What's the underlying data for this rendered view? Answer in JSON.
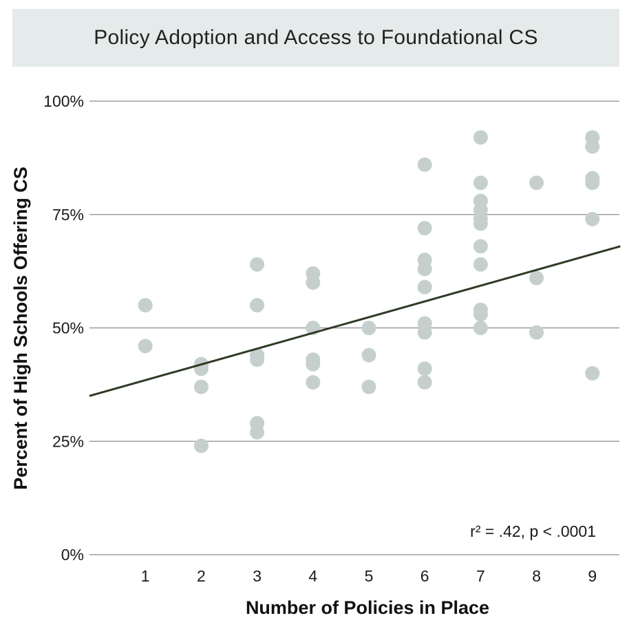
{
  "chart_data": {
    "type": "scatter",
    "title": "Policy Adoption and Access to Foundational CS",
    "xlabel": "Number of Policies in Place",
    "ylabel": "Percent of High Schools Offering CS",
    "x_ticks": [
      "1",
      "2",
      "3",
      "4",
      "5",
      "6",
      "7",
      "8",
      "9"
    ],
    "y_ticks": [
      "0%",
      "25%",
      "50%",
      "75%",
      "100%"
    ],
    "xlim": [
      0,
      9.5
    ],
    "ylim": [
      0,
      100
    ],
    "grid": "horizontal",
    "annotation": "r² = .42,  p < .0001",
    "points": [
      {
        "x": 1,
        "y": 55
      },
      {
        "x": 1,
        "y": 46
      },
      {
        "x": 2,
        "y": 42
      },
      {
        "x": 2,
        "y": 41
      },
      {
        "x": 2,
        "y": 37
      },
      {
        "x": 2,
        "y": 24
      },
      {
        "x": 3,
        "y": 64
      },
      {
        "x": 3,
        "y": 55
      },
      {
        "x": 3,
        "y": 44
      },
      {
        "x": 3,
        "y": 43
      },
      {
        "x": 3,
        "y": 29
      },
      {
        "x": 3,
        "y": 27
      },
      {
        "x": 4,
        "y": 62
      },
      {
        "x": 4,
        "y": 60
      },
      {
        "x": 4,
        "y": 50
      },
      {
        "x": 4,
        "y": 43
      },
      {
        "x": 4,
        "y": 42
      },
      {
        "x": 4,
        "y": 38
      },
      {
        "x": 5,
        "y": 50
      },
      {
        "x": 5,
        "y": 44
      },
      {
        "x": 5,
        "y": 37
      },
      {
        "x": 6,
        "y": 86
      },
      {
        "x": 6,
        "y": 72
      },
      {
        "x": 6,
        "y": 65
      },
      {
        "x": 6,
        "y": 63
      },
      {
        "x": 6,
        "y": 59
      },
      {
        "x": 6,
        "y": 51
      },
      {
        "x": 6,
        "y": 49
      },
      {
        "x": 6,
        "y": 41
      },
      {
        "x": 6,
        "y": 38
      },
      {
        "x": 7,
        "y": 92
      },
      {
        "x": 7,
        "y": 82
      },
      {
        "x": 7,
        "y": 78
      },
      {
        "x": 7,
        "y": 76
      },
      {
        "x": 7,
        "y": 74
      },
      {
        "x": 7,
        "y": 73
      },
      {
        "x": 7,
        "y": 68
      },
      {
        "x": 7,
        "y": 64
      },
      {
        "x": 7,
        "y": 54
      },
      {
        "x": 7,
        "y": 53
      },
      {
        "x": 7,
        "y": 50
      },
      {
        "x": 8,
        "y": 82
      },
      {
        "x": 8,
        "y": 61
      },
      {
        "x": 8,
        "y": 49
      },
      {
        "x": 9,
        "y": 92
      },
      {
        "x": 9,
        "y": 90
      },
      {
        "x": 9,
        "y": 83
      },
      {
        "x": 9,
        "y": 82
      },
      {
        "x": 9,
        "y": 74
      },
      {
        "x": 9,
        "y": 40
      }
    ],
    "trendline": {
      "x_start": 0,
      "y_start": 35,
      "x_end": 9.5,
      "y_end": 68
    },
    "colors": {
      "points": "#c5d0ce",
      "trendline": "#2e3a25",
      "gridlines": "#8a8a8a",
      "title_band": "#e5ebea"
    }
  }
}
